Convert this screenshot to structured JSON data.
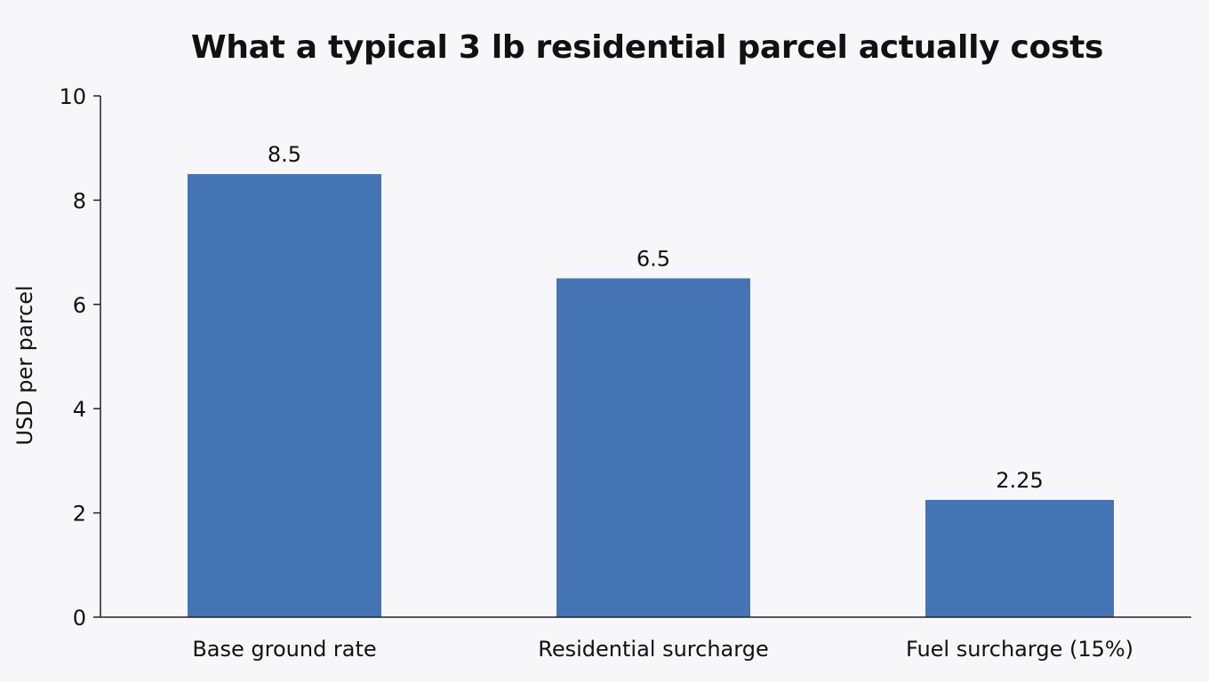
{
  "chart_data": {
    "type": "bar",
    "title": "What a typical 3 lb residential parcel actually costs",
    "xlabel": "",
    "ylabel": "USD per parcel",
    "categories": [
      "Base ground rate",
      "Residential surcharge",
      "Fuel surcharge (15%)"
    ],
    "values": [
      8.5,
      6.5,
      2.25
    ],
    "value_labels": [
      "8.5",
      "6.5",
      "2.25"
    ],
    "ylim": [
      0,
      10
    ],
    "yticks": [
      0,
      2,
      4,
      6,
      8,
      10
    ],
    "grid": false,
    "legend": "none",
    "bar_color": "#4574b4"
  }
}
